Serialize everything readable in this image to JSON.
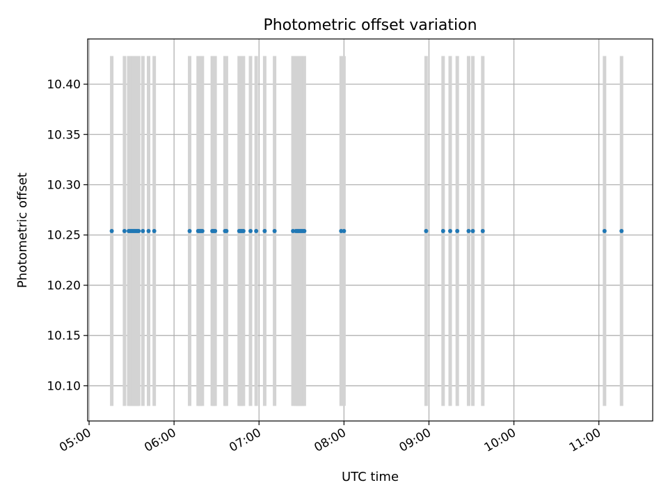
{
  "chart_data": {
    "type": "scatter",
    "title": "Photometric offset variation",
    "xlabel": "UTC time",
    "ylabel": "Photometric offset",
    "x_ticks": [
      "05:00",
      "06:00",
      "07:00",
      "08:00",
      "09:00",
      "10:00",
      "11:00"
    ],
    "y_ticks": [
      "10.10",
      "10.15",
      "10.20",
      "10.25",
      "10.30",
      "10.35",
      "10.40"
    ],
    "xlim": [
      "04:59",
      "11:38"
    ],
    "ylim": [
      10.065,
      10.445
    ],
    "grid": true,
    "series": [
      {
        "marker": "point",
        "color": "#1f77b4",
        "x": [
          "05:16",
          "05:25",
          "05:28",
          "05:29",
          "05:30",
          "05:31",
          "05:32",
          "05:33",
          "05:34",
          "05:35",
          "05:38",
          "05:42",
          "05:46",
          "06:11",
          "06:17",
          "06:18",
          "06:19",
          "06:20",
          "06:27",
          "06:28",
          "06:29",
          "06:36",
          "06:37",
          "06:46",
          "06:47",
          "06:48",
          "06:49",
          "06:54",
          "06:58",
          "07:04",
          "07:11",
          "07:24",
          "07:26",
          "07:27",
          "07:28",
          "07:29",
          "07:30",
          "07:31",
          "07:32",
          "07:58",
          "08:00",
          "08:58",
          "09:10",
          "09:15",
          "09:20",
          "09:28",
          "09:31",
          "09:38",
          "11:04",
          "11:16"
        ],
        "y": [
          10.254,
          10.254,
          10.254,
          10.254,
          10.254,
          10.254,
          10.254,
          10.254,
          10.254,
          10.254,
          10.254,
          10.254,
          10.254,
          10.254,
          10.254,
          10.254,
          10.254,
          10.254,
          10.254,
          10.254,
          10.254,
          10.254,
          10.254,
          10.254,
          10.254,
          10.254,
          10.254,
          10.254,
          10.254,
          10.254,
          10.254,
          10.254,
          10.254,
          10.254,
          10.254,
          10.254,
          10.254,
          10.254,
          10.254,
          10.254,
          10.254,
          10.254,
          10.254,
          10.254,
          10.254,
          10.254,
          10.254,
          10.254,
          10.254,
          10.254
        ]
      }
    ],
    "error_bars": {
      "color": "#d3d3d3",
      "lower": 10.08,
      "upper": 10.428
    },
    "colors": {
      "points": "#1f77b4",
      "error_bars": "#d3d3d3",
      "grid": "#b0b0b0"
    }
  }
}
